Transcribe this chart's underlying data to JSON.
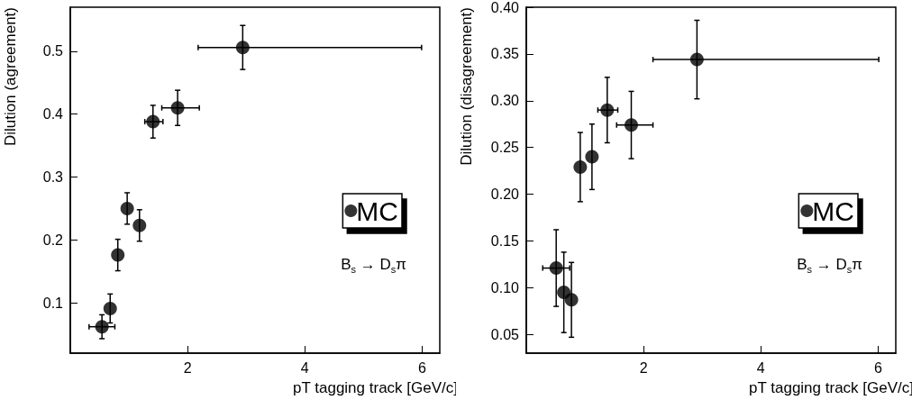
{
  "chart_data": [
    {
      "type": "scatter",
      "xlabel": "pT tagging track [GeV/c]",
      "ylabel": "Dilution (agreement)",
      "annotations": [
        "B$_{s}$ → D$_{s}$π"
      ],
      "series": [
        {
          "name": "MC",
          "color": "#000000",
          "x": [
            0.54,
            0.68,
            0.81,
            0.97,
            1.18,
            1.41,
            1.83,
            2.94
          ],
          "values": [
            0.062,
            0.091,
            0.176,
            0.25,
            0.223,
            0.388,
            0.41,
            0.506
          ],
          "errors": [
            0.019,
            0.023,
            0.025,
            0.025,
            0.025,
            0.026,
            0.028,
            0.035
          ],
          "xerrors": [
            [
              0.32,
              0.76
            ],
            null,
            null,
            null,
            null,
            [
              1.27,
              1.58
            ],
            [
              1.56,
              2.2
            ],
            [
              2.18,
              5.99
            ]
          ]
        }
      ],
      "xlim": [
        0,
        6.3
      ],
      "xticks": [
        2,
        4,
        6
      ],
      "ylim": [
        0.02,
        0.57
      ],
      "yticks": [
        0.1,
        0.2,
        0.3,
        0.4,
        0.5
      ],
      "grid": false,
      "legend": "right",
      "marker": "circle"
    },
    {
      "type": "scatter",
      "xlabel": "pT tagging track [GeV/c]",
      "ylabel": "Dilution (disagreement)",
      "annotations": [
        "B$_{s}$ → D$_{s}$π"
      ],
      "series": [
        {
          "name": "MC",
          "color": "#000000",
          "x": [
            0.51,
            0.64,
            0.77,
            0.92,
            1.12,
            1.38,
            1.79,
            2.91
          ],
          "values": [
            0.121,
            0.095,
            0.087,
            0.229,
            0.24,
            0.29,
            0.274,
            0.344
          ],
          "errors": [
            0.041,
            0.043,
            0.04,
            0.037,
            0.035,
            0.035,
            0.036,
            0.042
          ],
          "xerrors": [
            [
              0.28,
              0.74
            ],
            null,
            null,
            null,
            null,
            [
              1.22,
              1.56
            ],
            [
              1.54,
              2.16
            ],
            [
              2.16,
              6.01
            ]
          ]
        }
      ],
      "xlim": [
        0,
        6.3
      ],
      "xticks": [
        2,
        4,
        6
      ],
      "ylim": [
        0.03,
        0.4
      ],
      "yticks": [
        {
          "value": 0.05,
          "label": "0.05"
        },
        {
          "value": 0.1,
          "label": "0.10"
        },
        {
          "value": 0.15,
          "label": "0.15"
        },
        {
          "value": 0.2,
          "label": "0.20"
        },
        {
          "value": 0.25,
          "label": "0.25"
        },
        {
          "value": 0.3,
          "label": "0.30"
        },
        {
          "value": 0.35,
          "label": "0.35"
        },
        {
          "value": 0.4,
          "label": "0.40"
        }
      ],
      "grid": false,
      "legend": "right",
      "marker": "circle"
    }
  ]
}
